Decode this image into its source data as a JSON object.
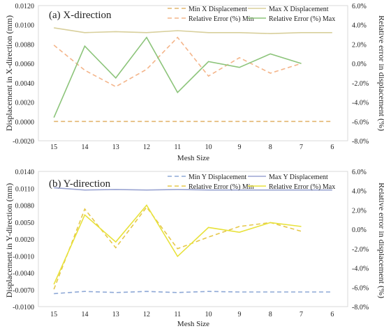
{
  "chart_data": [
    {
      "type": "line",
      "title": "(a) X-direction",
      "xlabel": "Mesh Size",
      "ylabel": "Displacement in X-direction (mm)",
      "y2label": "Relative error in displacement (%)",
      "categories": [
        "15",
        "14",
        "13",
        "12",
        "11",
        "10",
        "9",
        "8",
        "7",
        "6"
      ],
      "ylim": [
        -0.002,
        0.012
      ],
      "yticks": [
        "-0.0020",
        "0.0000",
        "0.0020",
        "0.0040",
        "0.0060",
        "0.0080",
        "0.0100",
        "0.0120"
      ],
      "y2lim": [
        -8,
        6
      ],
      "y2ticks": [
        "-8.0%",
        "-6.0%",
        "-4.0%",
        "-2.0%",
        "0.0%",
        "2.0%",
        "4.0%",
        "6.0%"
      ],
      "legend": "top-right",
      "series": [
        {
          "name": "Min X Displacement",
          "axis": "left",
          "dash": true,
          "color": "#e2b56f",
          "values": [
            0.0,
            0.0,
            0.0,
            0.0,
            0.0,
            0.0,
            0.0,
            0.0,
            0.0,
            0.0
          ]
        },
        {
          "name": "Max X Displacement",
          "axis": "left",
          "dash": false,
          "color": "#d8cf9b",
          "values": [
            0.0097,
            0.0092,
            0.0093,
            0.0092,
            0.0094,
            0.0092,
            0.0092,
            0.0091,
            0.0092,
            0.0092
          ]
        },
        {
          "name": "Relative Error (%) Min",
          "axis": "right",
          "dash": true,
          "color": "#f4b58a",
          "values": [
            1.9,
            -0.7,
            -2.4,
            -0.6,
            2.7,
            -1.3,
            0.6,
            -1.0,
            0.0,
            null
          ]
        },
        {
          "name": "Relative Error (%) Max",
          "axis": "right",
          "dash": false,
          "color": "#8cc47a",
          "values": [
            -5.6,
            1.8,
            -1.5,
            2.7,
            -3.0,
            0.2,
            -0.4,
            1.0,
            0.0,
            null
          ]
        }
      ]
    },
    {
      "type": "line",
      "title": "(b) Y-direction",
      "xlabel": "Mesh Size",
      "ylabel": "Displacement in Y-direction (mm)",
      "y2label": "Relative error in displacement (%)",
      "categories": [
        "15",
        "14",
        "13",
        "12",
        "11",
        "10",
        "9",
        "8",
        "7",
        "6"
      ],
      "ylim": [
        -0.01,
        0.014
      ],
      "yticks": [
        "-0.0100",
        "-0.0070",
        "-0.0040",
        "-0.0010",
        "0.0020",
        "0.0050",
        "0.0080",
        "0.0110",
        "0.0140"
      ],
      "y2lim": [
        -8,
        6
      ],
      "y2ticks": [
        "-8.0%",
        "-6.0%",
        "-4.0%",
        "-2.0%",
        "0.0%",
        "2.0%",
        "4.0%",
        "6.0%"
      ],
      "legend": "top-right",
      "series": [
        {
          "name": "Min Y Displacement",
          "axis": "left",
          "dash": true,
          "color": "#8ea8d6",
          "values": [
            -0.0077,
            -0.0073,
            -0.0075,
            -0.0073,
            -0.0075,
            -0.0073,
            -0.0074,
            -0.0074,
            -0.0074,
            -0.0074
          ]
        },
        {
          "name": "Max Y Displacement",
          "axis": "left",
          "dash": false,
          "color": "#9aa4d2",
          "values": [
            0.0111,
            0.0107,
            0.0108,
            0.0107,
            0.0108,
            0.0107,
            0.0107,
            0.0107,
            0.0107,
            0.0107
          ]
        },
        {
          "name": "Relative Error (%) Min",
          "axis": "right",
          "dash": true,
          "color": "#e6c84a",
          "values": [
            -6.2,
            2.1,
            -1.9,
            2.3,
            -2.0,
            -0.8,
            0.3,
            0.7,
            -0.2,
            null
          ]
        },
        {
          "name": "Relative Error (%) Max",
          "axis": "right",
          "dash": false,
          "color": "#e8e23c",
          "values": [
            -5.7,
            1.5,
            -1.3,
            2.5,
            -2.8,
            0.2,
            -0.3,
            0.7,
            0.3,
            null
          ]
        }
      ]
    }
  ]
}
